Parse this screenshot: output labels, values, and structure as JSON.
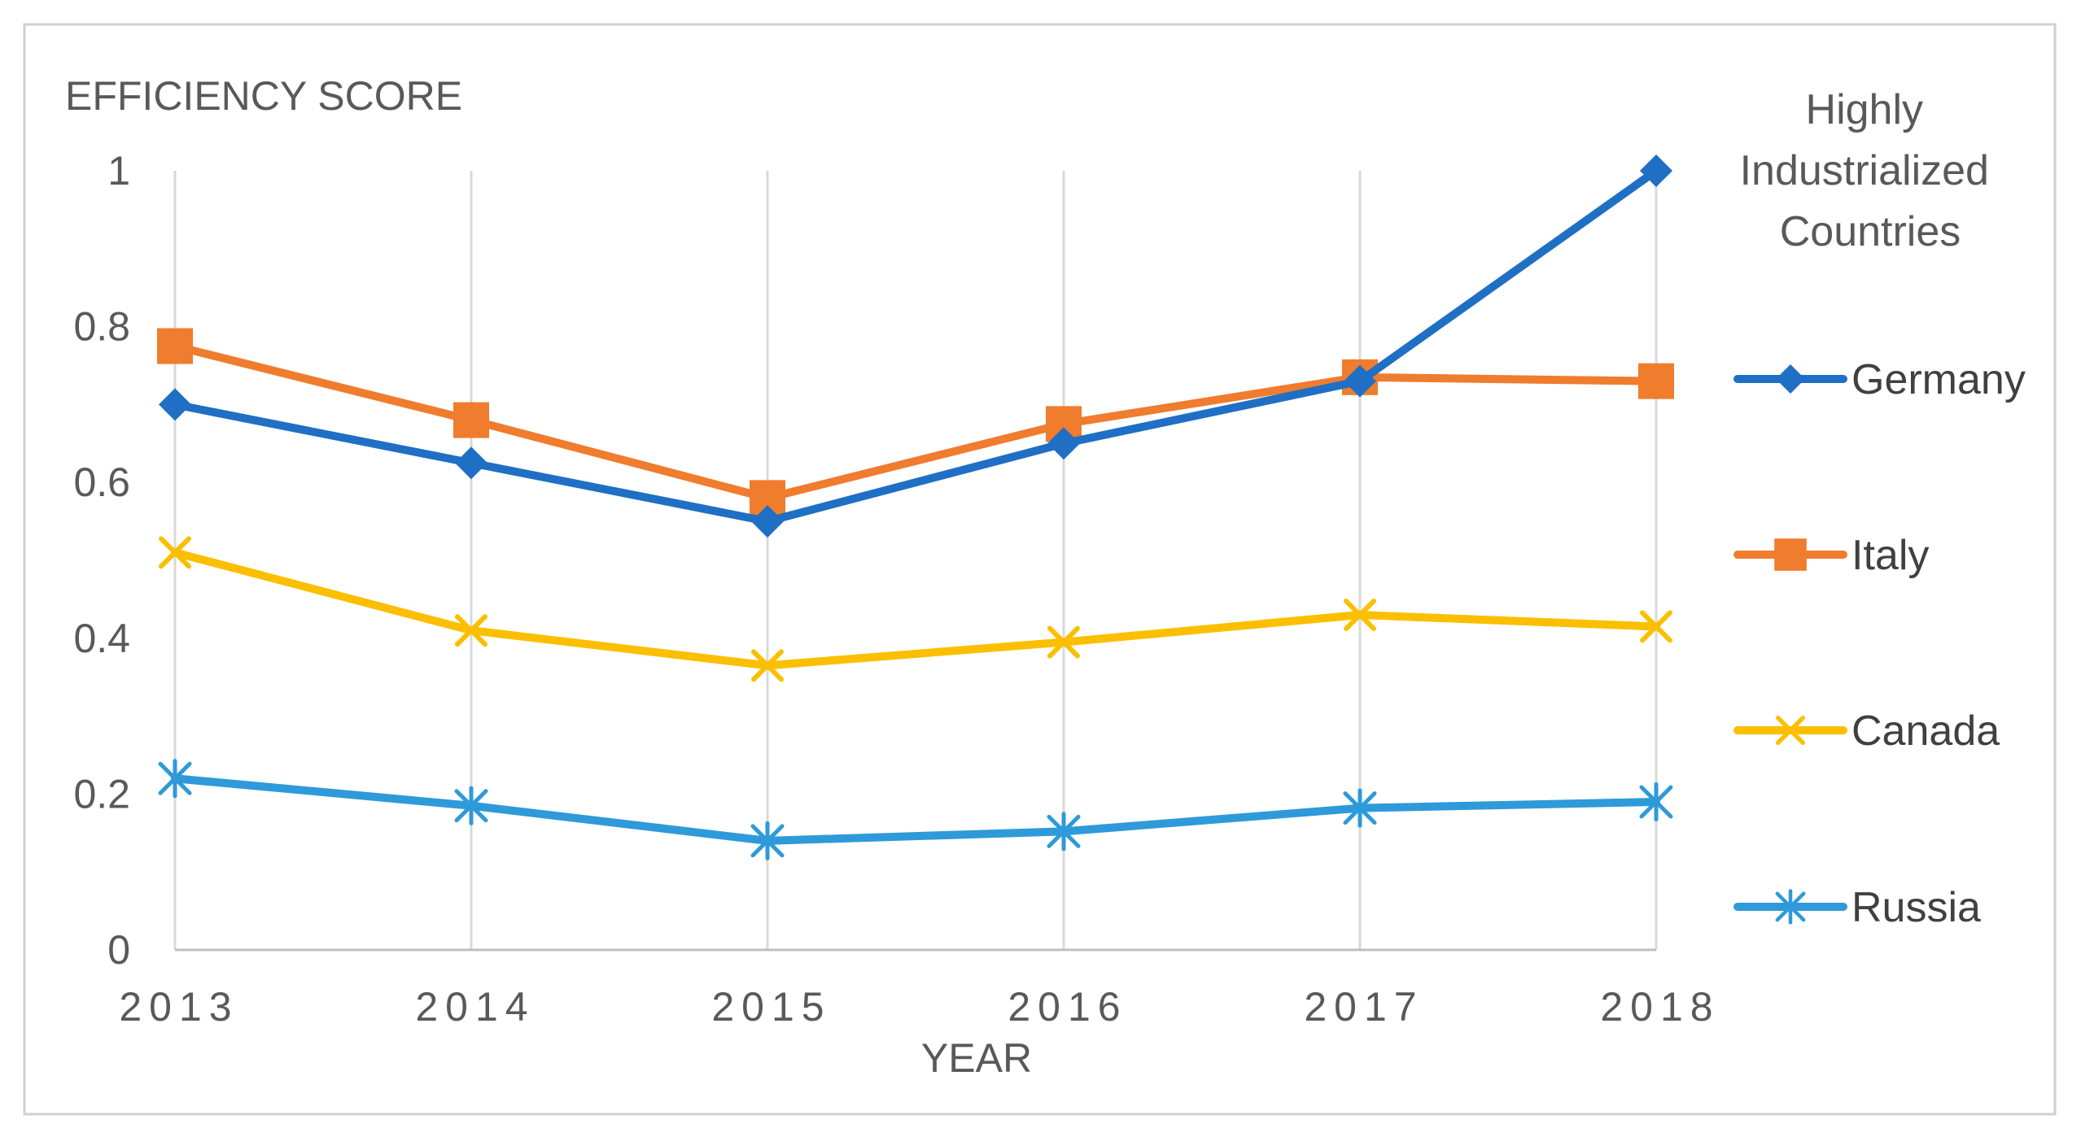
{
  "chart_data": {
    "type": "line",
    "ylabel": "EFFICIENCY SCORE",
    "xlabel": "YEAR",
    "categories": [
      "2013",
      "2014",
      "2015",
      "2016",
      "2017",
      "2018"
    ],
    "ylim": [
      0,
      1
    ],
    "yticks": [
      0,
      0.2,
      0.4,
      0.6,
      0.8,
      1
    ],
    "ytick_labels": [
      "0",
      "0.2",
      "0.4",
      "0.6",
      "0.8",
      "1"
    ],
    "grid": "vertical",
    "legend_title": "Highly Industrialized Countries",
    "legend_title_lines": [
      "Highly",
      "Industrialized",
      "Countries"
    ],
    "legend_position": "right",
    "series": [
      {
        "name": "Germany",
        "marker": "diamond",
        "color": "#1f6fc5",
        "values": [
          0.7,
          0.625,
          0.55,
          0.65,
          0.73,
          1.0
        ]
      },
      {
        "name": "Italy",
        "marker": "square",
        "color": "#f07c2e",
        "values": [
          0.775,
          0.68,
          0.58,
          0.675,
          0.735,
          0.73
        ]
      },
      {
        "name": "Canada",
        "marker": "x",
        "color": "#fbbf00",
        "values": [
          0.51,
          0.41,
          0.365,
          0.395,
          0.43,
          0.415
        ]
      },
      {
        "name": "Russia",
        "marker": "star",
        "color": "#2e9ad9",
        "values": [
          0.22,
          0.185,
          0.14,
          0.152,
          0.182,
          0.19
        ]
      }
    ]
  }
}
